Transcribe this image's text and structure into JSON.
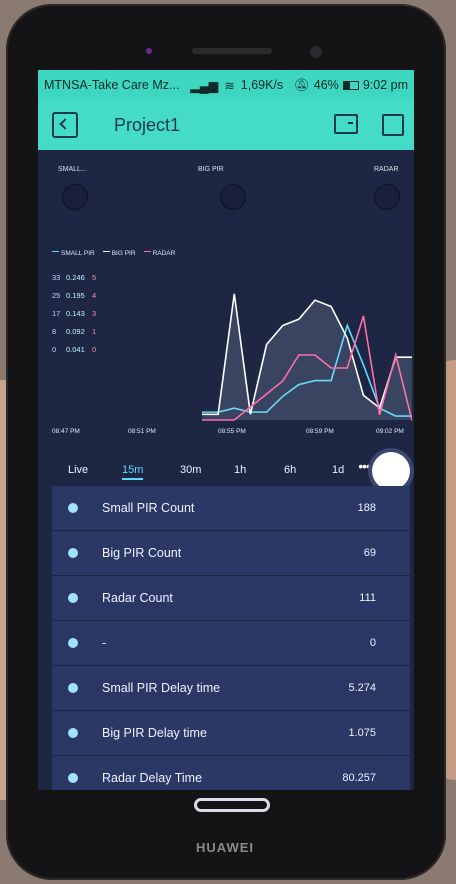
{
  "statusbar": {
    "carrier": "MTNSA-Take Care Mz...",
    "speed": "1,69K/s",
    "battery": "46%",
    "time": "9:02 pm"
  },
  "appbar": {
    "title": "Project1"
  },
  "leds": [
    {
      "label": "SMALL..."
    },
    {
      "label": "BIG PIR"
    },
    {
      "label": "RADAR"
    }
  ],
  "chart_data": {
    "type": "line",
    "legend": [
      "SMALL PIR",
      "BIG PIR",
      "RADAR"
    ],
    "y_columns": {
      "small_pir": [
        "33",
        "25",
        "17",
        "8",
        "0"
      ],
      "big_pir": [
        "0.246",
        "0.195",
        "0.143",
        "0.092",
        "0.041"
      ],
      "radar": [
        "5",
        "4",
        "3",
        "1",
        "0"
      ]
    },
    "x_ticks": [
      "08:47 PM",
      "08:51 PM",
      "08:55 PM",
      "08:59 PM",
      "09:02 PM"
    ],
    "colors": {
      "small_pir": "#5fd8ff",
      "big_pir": "#ffffff",
      "radar": "#ff6fa8"
    },
    "series": [
      {
        "name": "SMALL PIR",
        "x": [
          0,
          1,
          2,
          3,
          4,
          5,
          6,
          7,
          8,
          9,
          10,
          11,
          12,
          13,
          14
        ],
        "values": [
          2,
          2,
          3,
          2,
          2,
          6,
          9,
          10,
          10,
          24,
          14,
          3,
          1,
          1,
          1
        ]
      },
      {
        "name": "BIG PIR",
        "x": [
          0,
          1,
          2,
          3,
          4,
          5,
          6,
          7,
          8,
          9,
          10,
          11,
          12,
          13,
          14
        ],
        "values": [
          0.05,
          0.05,
          0.24,
          0.05,
          0.16,
          0.19,
          0.2,
          0.23,
          0.22,
          0.17,
          0.08,
          0.06,
          0.14,
          0.14,
          0.14
        ]
      },
      {
        "name": "RADAR",
        "x": [
          0,
          1,
          2,
          3,
          4,
          5,
          6,
          7,
          8,
          9,
          10,
          11,
          12,
          13,
          14
        ],
        "values": [
          0,
          0,
          0,
          0.5,
          1,
          1.5,
          2.5,
          2.5,
          2,
          2,
          4,
          0.2,
          2.5,
          0,
          0
        ]
      }
    ]
  },
  "periods": [
    "Live",
    "15m",
    "30m",
    "1h",
    "6h",
    "1d"
  ],
  "active_period": "15m",
  "rows": [
    {
      "label": "Small PIR Count",
      "value": "188"
    },
    {
      "label": "Big PIR Count",
      "value": "69"
    },
    {
      "label": "Radar Count",
      "value": "111"
    },
    {
      "label": "-",
      "value": "0"
    },
    {
      "label": "Small PIR Delay time",
      "value": "5.274"
    },
    {
      "label": "Big PIR Delay time",
      "value": "1.075"
    },
    {
      "label": "Radar Delay Time",
      "value": "80.257"
    }
  ],
  "device": {
    "brand": "HUAWEI"
  }
}
